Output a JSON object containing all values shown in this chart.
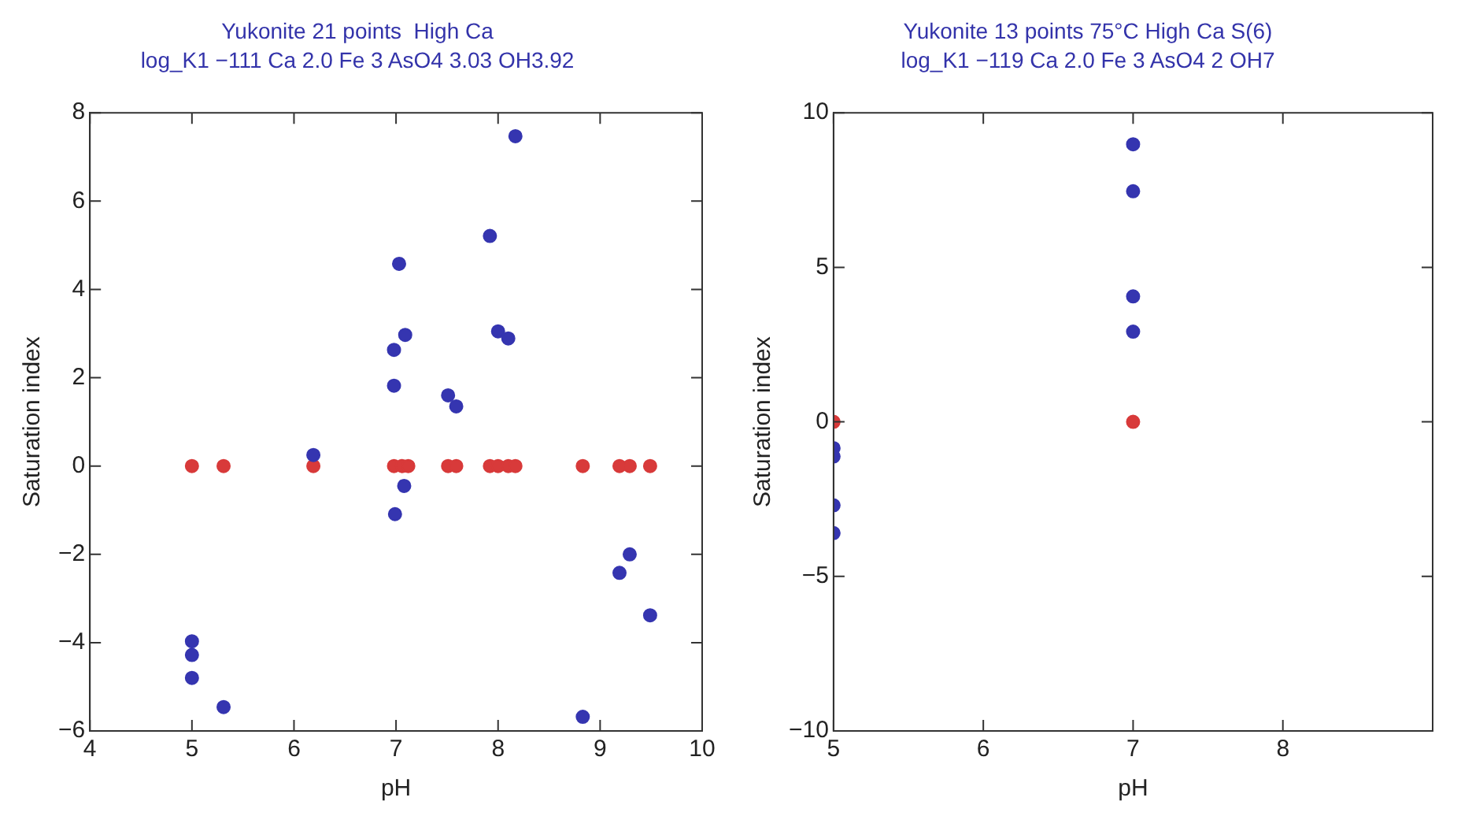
{
  "chart_data": [
    {
      "type": "scatter",
      "title": "Yukonite 21 points  High Ca",
      "subtitle": "log_K1 −111 Ca 2.0 Fe 3 AsO4 3.03 OH3.92",
      "xlabel": "pH",
      "ylabel": "Saturation index",
      "xlim": [
        4,
        10
      ],
      "xticks": [
        4,
        5,
        6,
        7,
        8,
        9,
        10
      ],
      "ylim": [
        -6,
        8
      ],
      "yticks": [
        -6,
        -4,
        -2,
        0,
        2,
        4,
        6,
        8
      ],
      "grid": false,
      "legend": false,
      "marker": "circle",
      "series": [
        {
          "color": "#3535b0",
          "x": [
            5.0,
            5.0,
            5.0,
            5.31,
            6.19,
            6.98,
            6.98,
            7.03,
            7.09,
            7.08,
            6.99,
            7.51,
            7.59,
            7.92,
            8.0,
            8.1,
            8.17,
            9.19,
            9.29,
            9.49,
            8.83
          ],
          "values": [
            -3.97,
            -4.28,
            -4.8,
            -5.46,
            0.25,
            1.82,
            2.63,
            4.58,
            2.97,
            -0.45,
            -1.09,
            1.6,
            1.35,
            5.21,
            3.05,
            2.89,
            7.47,
            -2.42,
            -2.0,
            -3.38,
            -5.68
          ]
        },
        {
          "color": "#d83a3a",
          "x": [
            5.0,
            5.31,
            6.19,
            6.98,
            7.06,
            7.12,
            7.51,
            7.59,
            7.92,
            8.0,
            8.1,
            8.17,
            8.83,
            9.19,
            9.29,
            9.49
          ],
          "values": [
            0,
            0,
            0,
            0,
            0,
            0,
            0,
            0,
            0,
            0,
            0,
            0,
            0,
            0,
            0,
            0
          ]
        }
      ]
    },
    {
      "type": "scatter",
      "title": "Yukonite 13 points 75°C High Ca S(6)",
      "subtitle": "log_K1 −119 Ca 2.0 Fe 3 AsO4 2 OH7",
      "xlabel": "pH",
      "ylabel": "Saturation index",
      "xlim": [
        5,
        9
      ],
      "xticks": [
        5,
        6,
        7,
        8,
        {
          "value": 9,
          "label": null
        }
      ],
      "ylim": [
        -10,
        10
      ],
      "yticks": [
        -10,
        -5,
        0,
        5,
        10
      ],
      "grid": false,
      "legend": false,
      "marker": "circle",
      "series": [
        {
          "color": "#3535b0",
          "x": [
            7,
            7,
            7,
            7,
            5,
            5,
            5,
            5
          ],
          "values": [
            8.98,
            7.46,
            4.06,
            2.92,
            -0.85,
            -1.12,
            -2.7,
            -3.6
          ]
        },
        {
          "color": "#d83a3a",
          "x": [
            5,
            7
          ],
          "values": [
            0,
            0
          ]
        }
      ]
    }
  ]
}
